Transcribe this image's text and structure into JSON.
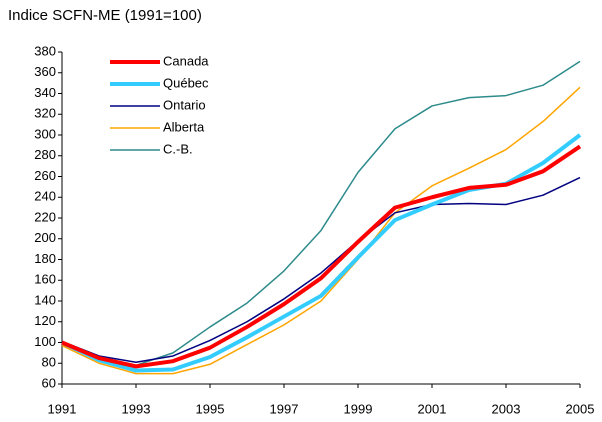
{
  "chart_data": {
    "type": "line",
    "title": "Indice SCFN-ME (1991=100)",
    "x": [
      1991,
      1992,
      1993,
      1994,
      1995,
      1996,
      1997,
      1998,
      1999,
      2000,
      2001,
      2002,
      2003,
      2004,
      2005
    ],
    "series": [
      {
        "name": "Canada",
        "color": "#ff0000",
        "line_width": 4,
        "values": [
          100,
          85,
          77,
          82,
          95,
          115,
          137,
          162,
          197,
          230,
          240,
          249,
          252,
          265,
          289
        ]
      },
      {
        "name": "Québec",
        "color": "#33ccff",
        "line_width": 4,
        "values": [
          100,
          83,
          73,
          74,
          86,
          105,
          125,
          145,
          182,
          218,
          233,
          247,
          253,
          273,
          300
        ]
      },
      {
        "name": "Ontario",
        "color": "#000080",
        "line_width": 1.5,
        "values": [
          101,
          87,
          81,
          87,
          102,
          120,
          142,
          167,
          198,
          225,
          233,
          234,
          233,
          242,
          259
        ]
      },
      {
        "name": "Alberta",
        "color": "#ffa500",
        "line_width": 1.5,
        "values": [
          97,
          80,
          70,
          70,
          79,
          98,
          117,
          140,
          180,
          225,
          251,
          268,
          286,
          313,
          346
        ]
      },
      {
        "name": "C.-B.",
        "color": "#2e8b8b",
        "line_width": 1.5,
        "values": [
          98,
          84,
          78,
          90,
          115,
          138,
          169,
          208,
          264,
          306,
          328,
          336,
          338,
          348,
          371
        ]
      }
    ],
    "xlim": [
      1991,
      2005
    ],
    "xticks": [
      1991,
      1993,
      1995,
      1997,
      1999,
      2001,
      2003,
      2005
    ],
    "ylim": [
      60,
      380
    ],
    "yticks": [
      60,
      80,
      100,
      120,
      140,
      160,
      180,
      200,
      220,
      240,
      260,
      280,
      300,
      320,
      340,
      360,
      380
    ],
    "grid": false,
    "legend": "upper left"
  }
}
